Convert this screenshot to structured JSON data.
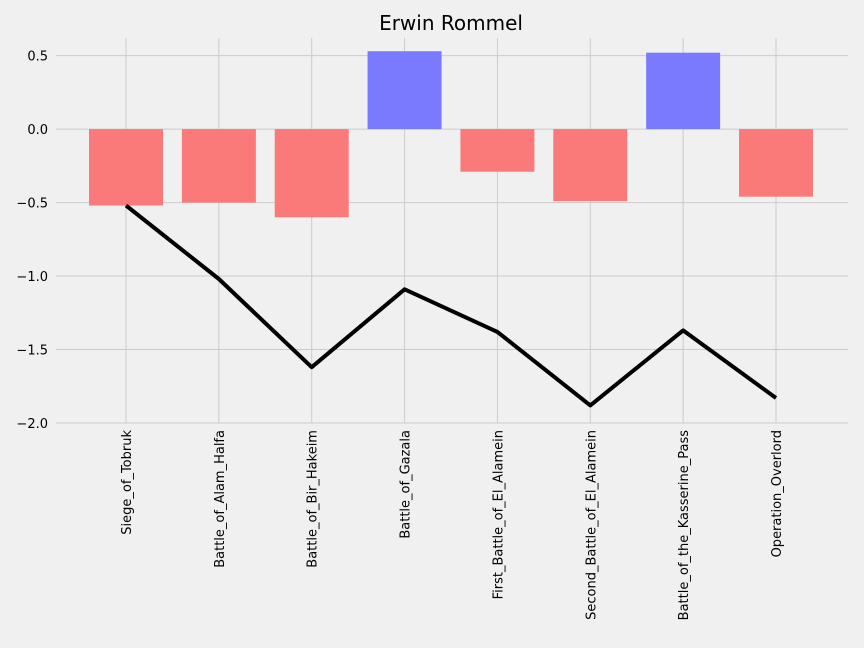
{
  "chart_data": {
    "type": "bar",
    "title": "Erwin Rommel",
    "xlabel": "",
    "ylabel": "",
    "categories": [
      "Siege_of_Tobruk",
      "Battle_of_Alam_Halfa",
      "Battle_of_Bir_Hakeim",
      "Battle_of_Gazala",
      "First_Battle_of_El_Alamein",
      "Second_Battle_of_El_Alamein",
      "Battle_of_the_Kasserine_Pass",
      "Operation_Overlord"
    ],
    "series": [
      {
        "type": "bar",
        "values": [
          -0.52,
          -0.5,
          -0.6,
          0.53,
          -0.29,
          -0.49,
          0.52,
          -0.46
        ]
      },
      {
        "type": "line",
        "values": [
          -0.52,
          -1.02,
          -1.62,
          -1.09,
          -1.38,
          -1.88,
          -1.37,
          -1.83
        ]
      }
    ],
    "ylim": [
      -2.0,
      0.62
    ],
    "yticks": [
      "0.5",
      "0.0",
      "−0.5",
      "−1.0",
      "−1.5",
      "−2.0"
    ],
    "ytick_values": [
      0.5,
      0.0,
      -0.5,
      -1.0,
      -1.5,
      -2.0
    ],
    "grid": true,
    "colors": {
      "positive": "#7a7aff",
      "negative": "#fa7a7a",
      "line": "#000000",
      "background": "#f0f0f0",
      "grid": "#cbcbcb"
    }
  }
}
